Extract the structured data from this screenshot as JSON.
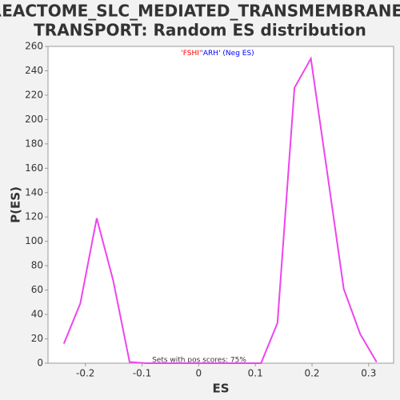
{
  "chart_data": {
    "type": "line",
    "title": [
      "REACTOME_SLC_MEDIATED_TRANSMEMBRANE_",
      "TRANSPORT: Random ES distribution"
    ],
    "x_label": "ES",
    "y_label": "P(ES)",
    "legend": [
      {
        "text": "'FSHI'",
        "color": "#ff0000"
      },
      {
        "text": "'ARH' (Neg ES)",
        "color": "#0000ff"
      }
    ],
    "annotation": "Sets with pos scores: 75%",
    "x": [
      -0.238,
      -0.209,
      -0.18,
      -0.151,
      -0.122,
      -0.093,
      -0.064,
      -0.035,
      -0.006,
      0.023,
      0.052,
      0.081,
      0.11,
      0.139,
      0.169,
      0.198,
      0.227,
      0.256,
      0.285,
      0.314
    ],
    "series": [
      {
        "name": "P(ES)",
        "color": "#ee44ee",
        "values": [
          16,
          49,
          119,
          68,
          1,
          0,
          0,
          0,
          0,
          0,
          0,
          0,
          0,
          33,
          226,
          250,
          156,
          61,
          24,
          1
        ]
      }
    ],
    "xlim": [
      -0.266,
      0.344
    ],
    "ylim": [
      0,
      260
    ],
    "xticks": [
      -0.2,
      -0.1,
      0,
      0.1,
      0.2,
      0.3
    ],
    "yticks": [
      0,
      20,
      40,
      60,
      80,
      100,
      120,
      140,
      160,
      180,
      200,
      220,
      240,
      260
    ]
  }
}
